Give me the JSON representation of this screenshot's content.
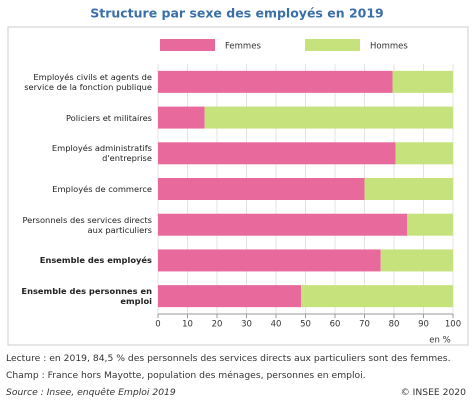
{
  "chart_data": {
    "type": "stacked-barh",
    "title": "Structure par sexe des employés en 2019",
    "categories": [
      "Employés civils et agents de service de la fonction publique",
      "Policiers et militaires",
      "Employés administratifs d'entreprise",
      "Employés de commerce",
      "Personnels des services directs aux particuliers",
      "Ensemble des employés",
      "Ensemble des personnes en emploi"
    ],
    "bold_categories": [
      5,
      6
    ],
    "series": [
      {
        "name": "Femmes",
        "color": "#e8699b",
        "values": [
          79.5,
          15.8,
          80.5,
          70,
          84.5,
          75.5,
          48.5
        ]
      },
      {
        "name": "Hommes",
        "color": "#c6e27c",
        "values": [
          20.5,
          84.2,
          19.5,
          30,
          15.5,
          24.5,
          51.5
        ]
      }
    ],
    "xlim": [
      0,
      100
    ],
    "xticks": [
      0,
      10,
      20,
      30,
      40,
      50,
      60,
      70,
      80,
      90,
      100
    ],
    "xlabel": "en %",
    "grid": true
  },
  "notes": [
    "Lecture : en 2019, 84,5 % des personnels des services directs aux particuliers sont des femmes.",
    "Champ : France hors Mayotte, population des ménages, personnes en emploi.",
    "Source : Insee, enquête Emploi 2019"
  ],
  "copyright": "© INSEE 2020"
}
